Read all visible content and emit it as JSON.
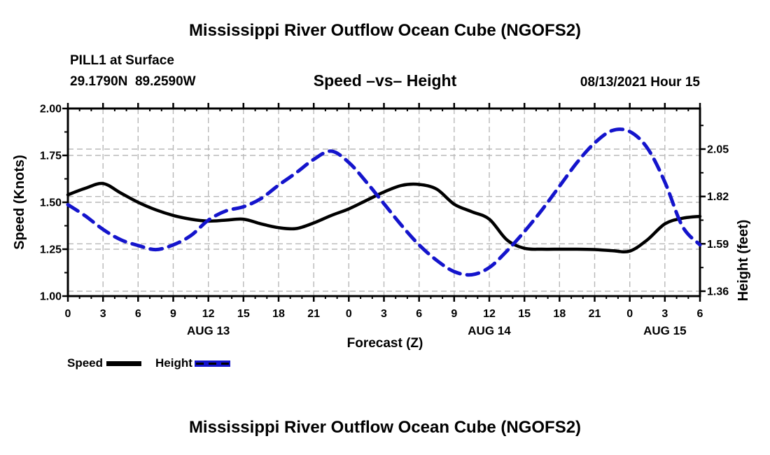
{
  "header": {
    "title": "Mississippi River Outflow Ocean Cube (NGOFS2)",
    "station_line": "PILL1 at Surface",
    "coords_line": "29.1790N  89.2590W",
    "subtitle": "Speed –vs– Height",
    "datetime": "08/13/2021 Hour 15"
  },
  "footer": {
    "title": "Mississippi River Outflow Ocean Cube (NGOFS2)"
  },
  "legend": {
    "items": [
      {
        "label": "Speed",
        "swatch": "solid-black-line"
      },
      {
        "label": "Height",
        "swatch": "dashed-blue-line"
      }
    ]
  },
  "colors": {
    "speed_line": "#000000",
    "height_line": "#1414cc",
    "grid": "#b8b8b8",
    "frame": "#000000",
    "background": "#ffffff"
  },
  "axes": {
    "x": {
      "label": "Forecast (Z)",
      "major_step_hours": 3,
      "minor_step_hours": 1,
      "range_hours": [
        0,
        54
      ],
      "tick_labels": [
        "0",
        "3",
        "6",
        "9",
        "12",
        "15",
        "18",
        "21",
        "0",
        "3",
        "6",
        "9",
        "12",
        "15",
        "18",
        "21",
        "0",
        "3",
        "6"
      ],
      "date_labels": [
        {
          "text": "AUG 13",
          "hour": 12
        },
        {
          "text": "AUG 14",
          "hour": 36
        },
        {
          "text": "AUG 15",
          "hour": 51
        }
      ]
    },
    "y_left": {
      "label": "Speed (Knots)",
      "min": 1.0,
      "max": 2.0,
      "tick_labels": [
        "2.00",
        "1.75",
        "1.50",
        "1.25",
        "1.00"
      ],
      "tick_values": [
        2.0,
        1.75,
        1.5,
        1.25,
        1.0
      ],
      "minor_values": [
        1.875,
        1.625,
        1.375,
        1.125
      ],
      "grid_values": [
        1.75,
        1.5,
        1.25
      ]
    },
    "y_right": {
      "label": "Height (feet)",
      "tick_labels": [
        "2.05",
        "1.82",
        "1.59",
        "1.36"
      ],
      "tick_values": [
        2.05,
        1.82,
        1.59,
        1.36
      ],
      "minor_values": [
        2.165,
        1.935,
        1.705,
        1.475
      ],
      "grid_values": [
        2.05,
        1.82,
        1.59,
        1.36
      ]
    }
  },
  "chart_data": {
    "type": "line",
    "title": "Speed –vs– Height",
    "xlabel": "Forecast (Z)",
    "ylabel_left": "Speed (Knots)",
    "ylabel_right": "Height (feet)",
    "ylim_left": [
      1.0,
      2.0
    ],
    "yticks_right": [
      2.05,
      1.82,
      1.59,
      1.36
    ],
    "x_range_hours": [
      0,
      54
    ],
    "x_start": "AUG 13 00Z",
    "x_end": "AUG 15 06Z",
    "grid": true,
    "legend_position": "below-left",
    "x_hours": [
      0,
      1.5,
      3,
      4.5,
      6,
      7.5,
      9,
      10.5,
      12,
      13.5,
      15,
      16.5,
      18,
      19.5,
      21,
      22.5,
      24,
      25.5,
      27,
      28.5,
      30,
      31.5,
      33,
      34.5,
      36,
      37.5,
      39,
      40.5,
      42,
      43.5,
      45,
      46.5,
      48,
      49.5,
      51,
      52.5,
      54
    ],
    "series": [
      {
        "name": "Speed",
        "axis": "left",
        "unit": "Knots",
        "color": "#000000",
        "style": "solid",
        "values": [
          1.54,
          1.575,
          1.6,
          1.55,
          1.5,
          1.46,
          1.43,
          1.41,
          1.4,
          1.405,
          1.41,
          1.385,
          1.365,
          1.36,
          1.39,
          1.43,
          1.465,
          1.51,
          1.555,
          1.59,
          1.595,
          1.57,
          1.49,
          1.45,
          1.41,
          1.3,
          1.255,
          1.25,
          1.25,
          1.25,
          1.248,
          1.242,
          1.24,
          1.3,
          1.385,
          1.415,
          1.425
        ]
      },
      {
        "name": "Height",
        "axis": "right",
        "unit": "feet",
        "color": "#1414cc",
        "style": "dashed",
        "values": [
          1.78,
          1.725,
          1.66,
          1.61,
          1.582,
          1.562,
          1.585,
          1.63,
          1.705,
          1.75,
          1.77,
          1.81,
          1.875,
          1.935,
          2.0,
          2.04,
          1.985,
          1.89,
          1.785,
          1.68,
          1.585,
          1.51,
          1.455,
          1.44,
          1.475,
          1.555,
          1.65,
          1.755,
          1.87,
          1.985,
          2.08,
          2.14,
          2.135,
          2.055,
          1.89,
          1.675,
          1.585
        ]
      }
    ]
  }
}
